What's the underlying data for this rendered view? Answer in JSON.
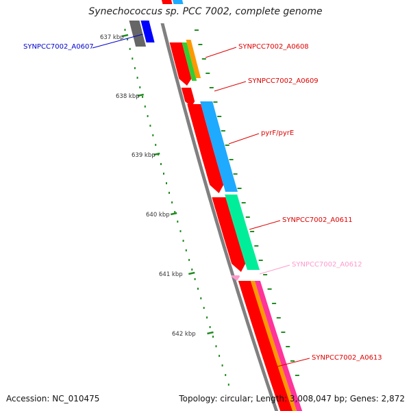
{
  "title": "Synechococcus sp. PCC 7002, complete genome",
  "accession": "Accession: NC_010475",
  "summary": "Topology: circular; Length: 3,008,047 bp; Genes: 2,872",
  "colors": {
    "backbone": "#808080",
    "tick": "#228b22",
    "red": "#ff0000",
    "blue": "#0000ff",
    "cyan": "#1eaaff",
    "green": "#33cc33",
    "orange": "#ff9900",
    "mint": "#00ee99",
    "pink": "#ff99cc",
    "magenta": "#ff3399",
    "grey": "#666666"
  },
  "ticks": [
    {
      "label": "637 kbp"
    },
    {
      "label": "638 kbp"
    },
    {
      "label": "639 kbp"
    },
    {
      "label": "640 kbp"
    },
    {
      "label": "641 kbp"
    },
    {
      "label": "642 kbp"
    }
  ],
  "genes": [
    {
      "label": "SYNPCC7002_A0607",
      "color": "#0000cc"
    },
    {
      "label": "SYNPCC7002_A0608",
      "color": "#dd0000"
    },
    {
      "label": "SYNPCC7002_A0609",
      "color": "#dd0000"
    },
    {
      "label": "pyrF/pyrE",
      "color": "#dd0000"
    },
    {
      "label": "SYNPCC7002_A0611",
      "color": "#dd0000"
    },
    {
      "label": "SYNPCC7002_A0612",
      "color": "#ff99cc"
    },
    {
      "label": "SYNPCC7002_A0613",
      "color": "#dd0000"
    }
  ]
}
